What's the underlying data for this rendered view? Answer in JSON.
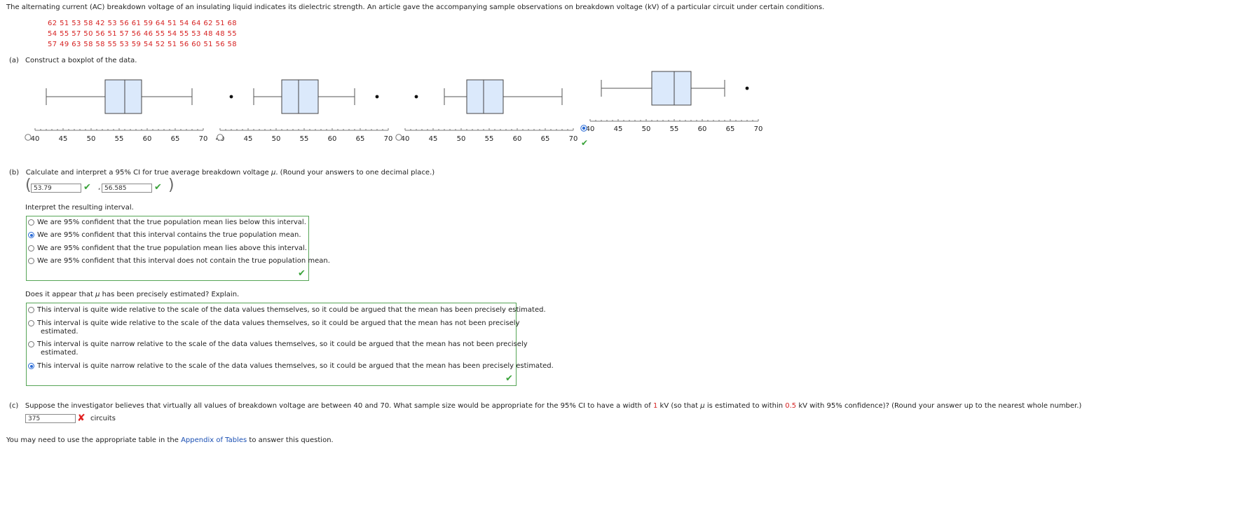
{
  "intro": "The alternating current (AC) breakdown voltage of an insulating liquid indicates its dielectric strength. An article gave the accompanying sample observations on breakdown voltage (kV) of a particular circuit under certain conditions.",
  "data_rows": [
    "62  51  53  58  42  53  56  61  59  64  51  54  64  62  51  68",
    "54  55  57  50  56  51  57  56  46  55  54  55  53  48  48  55",
    "57  49  63  58  58  55  53  59  54  52  51  56  60  51  56  58"
  ],
  "part_a": {
    "label": "(a)",
    "text": "Construct a boxplot of the data."
  },
  "axis_ticks": [
    "40",
    "45",
    "50",
    "55",
    "60",
    "65",
    "70"
  ],
  "boxplots": [
    {
      "option": "A",
      "selected": false,
      "whisker_low": 42,
      "q1": 52.5,
      "median": 56,
      "q3": 59,
      "whisker_high": 68,
      "outliers": []
    },
    {
      "option": "B",
      "selected": false,
      "whisker_low": 46,
      "q1": 51,
      "median": 54,
      "q3": 57.5,
      "whisker_high": 64,
      "outliers": [
        42,
        68
      ]
    },
    {
      "option": "C",
      "selected": false,
      "whisker_low": 47,
      "q1": 51,
      "median": 54,
      "q3": 57.5,
      "whisker_high": 68,
      "outliers": [
        42
      ]
    },
    {
      "option": "D",
      "selected": true,
      "whisker_low": 42,
      "q1": 51,
      "median": 55,
      "q3": 58,
      "whisker_high": 64,
      "outliers": [
        68
      ]
    }
  ],
  "part_b": {
    "label": "(b)",
    "text_pre": "Calculate and interpret a 95% CI for true average breakdown voltage ",
    "mu": "μ",
    "text_post": ". (Round your answers to one decimal place.)",
    "ci_low": "53.79",
    "ci_high": "56.585",
    "comma": ",",
    "interpret_prompt": "Interpret the resulting interval.",
    "interpret_options": [
      {
        "text": "We are 95% confident that the true population mean lies below this interval.",
        "selected": false
      },
      {
        "text": "We are 95% confident that this interval contains the true population mean.",
        "selected": true
      },
      {
        "text": "We are 95% confident that the true population mean lies above this interval.",
        "selected": false
      },
      {
        "text": "We are 95% confident that this interval does not contain the true population mean.",
        "selected": false
      }
    ],
    "precise_prompt_pre": "Does it appear that ",
    "precise_prompt_post": " has been precisely estimated? Explain.",
    "precise_options": [
      {
        "line1": "This interval is quite wide relative to the scale of the data values themselves, so it could be argued that the mean has been precisely estimated.",
        "line2": "",
        "selected": false
      },
      {
        "line1": "This interval is quite wide relative to the scale of the data values themselves, so it could be argued that the mean has not been precisely",
        "line2": "estimated.",
        "selected": false
      },
      {
        "line1": "This interval is quite narrow relative to the scale of the data values themselves, so it could be argued that the mean has not been precisely",
        "line2": "estimated.",
        "selected": false
      },
      {
        "line1": "This interval is quite narrow relative to the scale of the data values themselves, so it could be argued that the mean has been precisely estimated.",
        "line2": "",
        "selected": true
      }
    ]
  },
  "part_c": {
    "label": "(c)",
    "t1": "Suppose the investigator believes that virtually all values of breakdown voltage are between 40 and 70. What sample size would be appropriate for the 95% CI to have a width of ",
    "width_val": "1",
    "t2": " kV (so that ",
    "mu": "μ",
    "t3": " is estimated to within ",
    "within_val": "0.5",
    "t4": " kV with 95% confidence)? (Round your answer up to the nearest whole number.)",
    "answer": "375",
    "unit": "circuits"
  },
  "footer": {
    "pre": "You may need to use the appropriate table in the ",
    "link": "Appendix of Tables",
    "post": " to answer this question."
  },
  "colors": {
    "box_fill": "#dbe9fb",
    "accent": "#2a6bd6",
    "correct": "#3aa33a",
    "wrong": "#e02020",
    "given": "#d62222"
  }
}
